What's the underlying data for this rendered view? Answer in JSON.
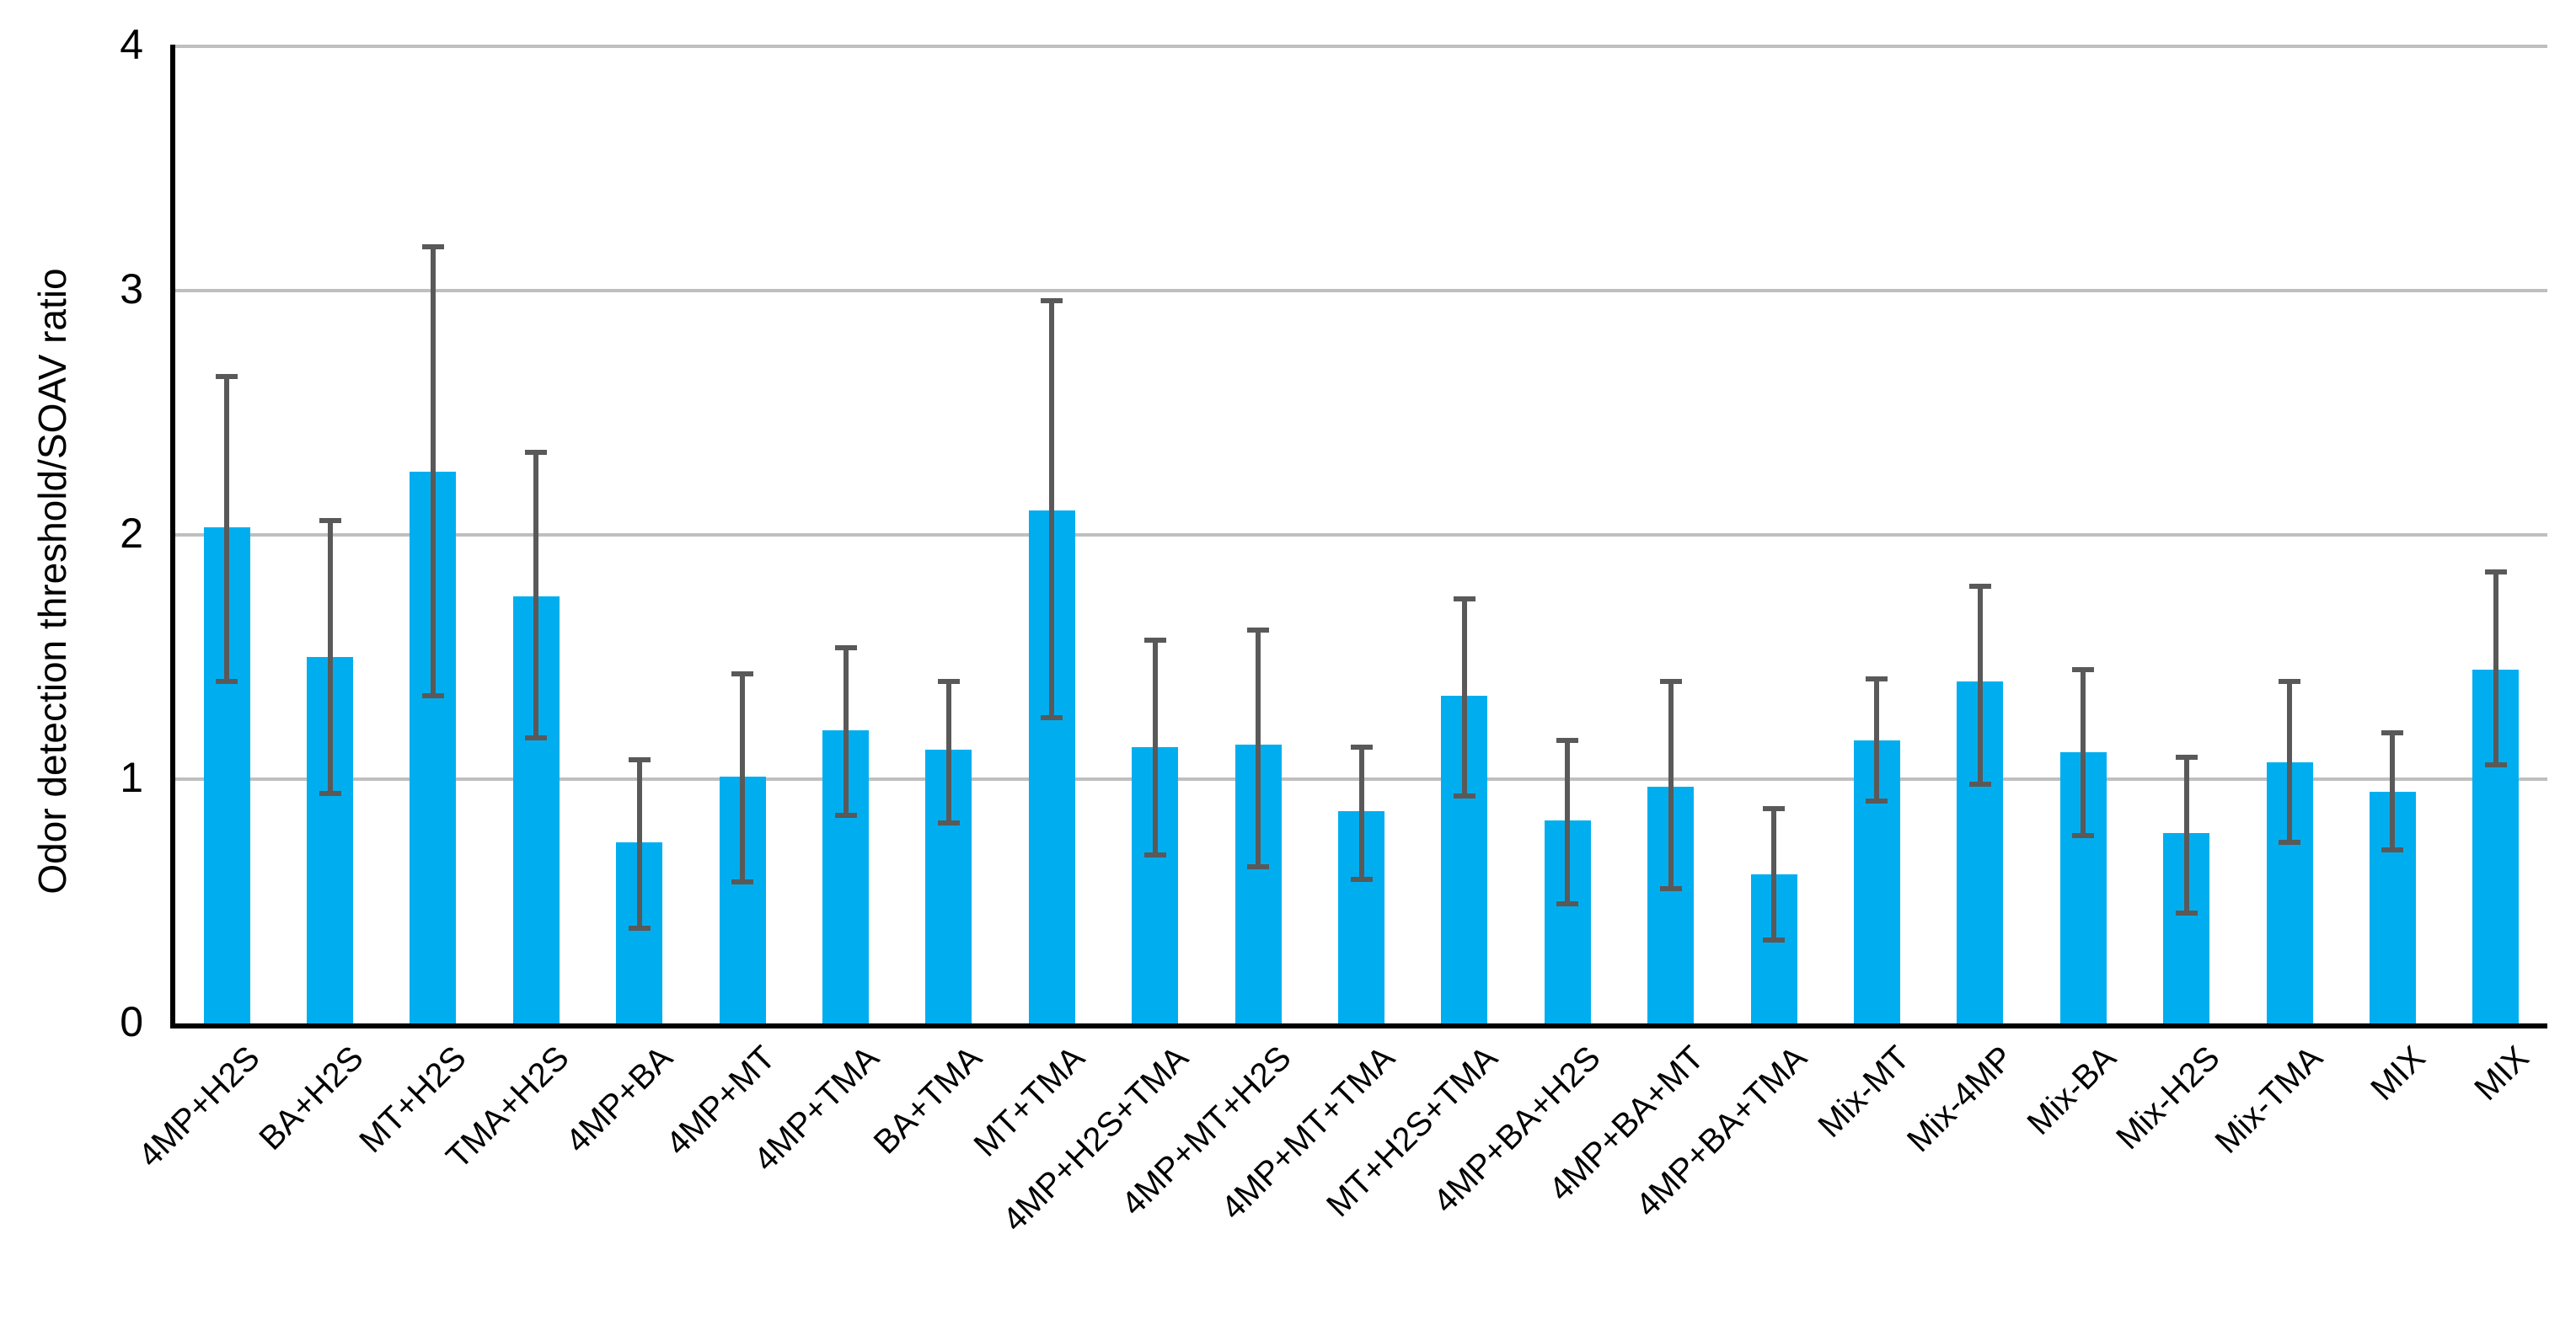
{
  "chart_data": {
    "type": "bar",
    "title": "",
    "xlabel": "",
    "ylabel": "Odor detection threshold/SOAV ratio",
    "ylim": [
      0,
      4
    ],
    "yticks": [
      0,
      1,
      2,
      3,
      4
    ],
    "grid": true,
    "legend": false,
    "categories": [
      "4MP+H2S",
      "BA+H2S",
      "MT+H2S",
      "TMA+H2S",
      "4MP+BA",
      "4MP+MT",
      "4MP+TMA",
      "BA+TMA",
      "MT+TMA",
      "4MP+H2S+TMA",
      "4MP+MT+H2S",
      "4MP+MT+TMA",
      "MT+H2S+TMA",
      "4MP+BA+H2S",
      "4MP+BA+MT",
      "4MP+BA+TMA",
      "Mix-MT",
      "Mix-4MP",
      "Mix-BA",
      "Mix-H2S",
      "Mix-TMA",
      "MIX",
      "MIX"
    ],
    "series": [
      {
        "name": "Odor detection threshold/SOAV ratio",
        "values": [
          2.03,
          1.5,
          2.26,
          1.75,
          0.74,
          1.01,
          1.2,
          1.12,
          2.1,
          1.13,
          1.14,
          0.87,
          1.34,
          0.83,
          0.97,
          0.61,
          1.16,
          1.4,
          1.11,
          0.78,
          1.07,
          0.95,
          1.45
        ],
        "error_low": [
          1.39,
          0.93,
          1.33,
          1.16,
          0.38,
          0.57,
          0.84,
          0.81,
          1.24,
          0.68,
          0.63,
          0.58,
          0.92,
          0.48,
          0.54,
          0.33,
          0.9,
          0.97,
          0.76,
          0.44,
          0.73,
          0.7,
          1.05
        ],
        "error_high": [
          2.66,
          2.07,
          3.19,
          2.35,
          1.09,
          1.44,
          1.55,
          1.41,
          2.97,
          1.58,
          1.62,
          1.14,
          1.75,
          1.17,
          1.41,
          0.89,
          1.42,
          1.8,
          1.46,
          1.1,
          1.41,
          1.2,
          1.86
        ]
      }
    ],
    "colors": {
      "bar": "#00AEEF",
      "error_bar": "#595959",
      "gridline": "#BFBFBF",
      "axis": "#000000",
      "text": "#000000"
    }
  }
}
